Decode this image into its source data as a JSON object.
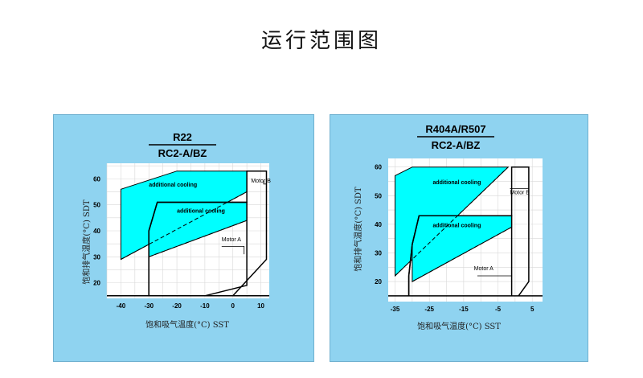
{
  "page": {
    "title": "运行范围图"
  },
  "chart_data": [
    {
      "type": "area",
      "title": "R22",
      "subtitle": "RC2-A/BZ",
      "xlabel": "饱和吸气温度(°C) SST",
      "ylabel": "饱和排气温度(°C) SDT",
      "xlim": [
        -45,
        13
      ],
      "ylim": [
        14,
        66
      ],
      "xticks": [
        -40,
        -30,
        -20,
        -10,
        0,
        10
      ],
      "yticks": [
        20,
        30,
        40,
        50,
        60
      ],
      "grid": true,
      "series": [
        {
          "name": "additional cooling",
          "points": [
            [
              -40,
              56
            ],
            [
              -20,
              63
            ],
            [
              5,
              63
            ],
            [
              5,
              55
            ],
            [
              -40,
              29
            ]
          ]
        },
        {
          "name": "additional cooling",
          "points": [
            [
              -30,
              40
            ],
            [
              -27,
              51
            ],
            [
              5,
              51
            ],
            [
              5,
              44
            ],
            [
              -30,
              30
            ]
          ]
        },
        {
          "name": "Motor B",
          "points": [
            [
              -30,
              15
            ],
            [
              -30,
              40
            ],
            [
              -27,
              51
            ],
            [
              5,
              51
            ],
            [
              5,
              63
            ],
            [
              12,
              63
            ],
            [
              12,
              29
            ],
            [
              0,
              15
            ]
          ]
        },
        {
          "name": "Motor A",
          "points": [
            [
              -30,
              15
            ],
            [
              -30,
              40
            ],
            [
              -27,
              51
            ],
            [
              5,
              51
            ],
            [
              5,
              19
            ],
            [
              -10,
              15
            ]
          ]
        }
      ]
    },
    {
      "type": "area",
      "title": "R404A/R507",
      "subtitle": "RC2-A/BZ",
      "xlabel": "饱和吸气温度(°C) SST",
      "ylabel": "饱和排气温度(°C) SDT",
      "xlim": [
        -37,
        8
      ],
      "ylim": [
        13,
        63
      ],
      "xticks": [
        -35,
        -25,
        -15,
        -5,
        5
      ],
      "yticks": [
        20,
        30,
        40,
        50,
        60
      ],
      "grid": true,
      "series": [
        {
          "name": "additional cooling",
          "points": [
            [
              -35,
              57
            ],
            [
              -30,
              60
            ],
            [
              -2,
              60
            ],
            [
              -35,
              22
            ]
          ]
        },
        {
          "name": "additional cooling",
          "points": [
            [
              -30,
              33
            ],
            [
              -28,
              43
            ],
            [
              -1,
              43
            ],
            [
              -1,
              39
            ],
            [
              -30,
              20
            ]
          ]
        },
        {
          "name": "Motor B",
          "points": [
            [
              -31,
              15
            ],
            [
              -31,
              22
            ],
            [
              -30,
              33
            ],
            [
              -28,
              43
            ],
            [
              -1,
              43
            ],
            [
              -1,
              60
            ],
            [
              4,
              60
            ],
            [
              4,
              20
            ],
            [
              1,
              15
            ]
          ]
        },
        {
          "name": "Motor A",
          "points": [
            [
              -31,
              15
            ],
            [
              -31,
              22
            ],
            [
              -30,
              33
            ],
            [
              -28,
              43
            ],
            [
              -1,
              43
            ],
            [
              -1,
              15
            ]
          ]
        }
      ]
    }
  ],
  "panels": [
    {
      "title": "R22",
      "subtitle": "RC2-A/BZ",
      "ylabel": "饱和排气温度(°C) SDT",
      "xlabel": "饱和吸气温度(°C) SST",
      "region_labels": [
        "additional cooling",
        "additional cooling"
      ],
      "motor_labels": [
        "Motor B",
        "Motor A"
      ],
      "xticks": [
        "-40",
        "-30",
        "-20",
        "-10",
        "0",
        "10"
      ],
      "yticks": [
        "20",
        "30",
        "40",
        "50",
        "60"
      ]
    },
    {
      "title": "R404A/R507",
      "subtitle": "RC2-A/BZ",
      "ylabel": "饱和排气温度(°C) SDT",
      "xlabel": "饱和吸气温度(°C) SST",
      "region_labels": [
        "additional cooling",
        "additional cooling"
      ],
      "motor_labels": [
        "Motor B",
        "Motor A"
      ],
      "xticks": [
        "-35",
        "-25",
        "-15",
        "-5",
        "5"
      ],
      "yticks": [
        "20",
        "30",
        "40",
        "50",
        "60"
      ]
    }
  ],
  "colors": {
    "panel_bg": "#8fd3f0",
    "fill": "#00ffff",
    "plot_bg": "#ffffff",
    "grid": "#d8d8d8"
  }
}
